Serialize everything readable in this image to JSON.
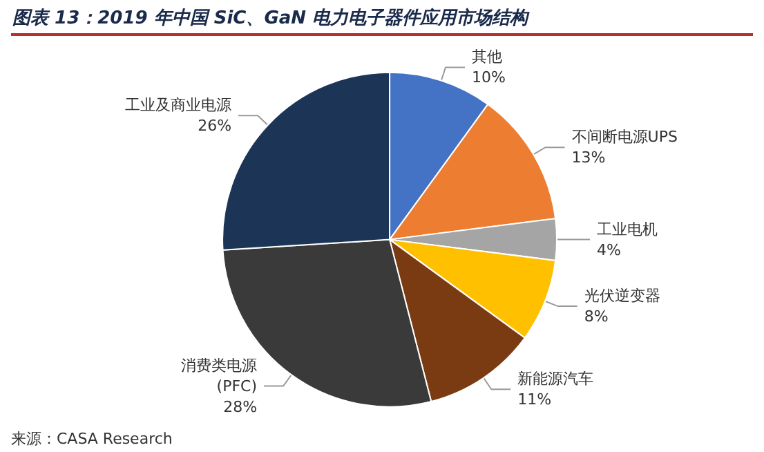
{
  "chart_data": {
    "type": "pie",
    "title": "图表 13：2019 年中国 SiC、GaN 电力电子器件应用市场结构",
    "categories": [
      "其他",
      "不间断电源UPS",
      "工业电机",
      "光伏逆变器",
      "新能源汽车",
      "消费类电源(PFC)",
      "工业及商业电源"
    ],
    "values": [
      10,
      13,
      4,
      8,
      11,
      28,
      26
    ],
    "colors": [
      "#4472c4",
      "#ed7d31",
      "#a5a5a5",
      "#ffc000",
      "#7b3b12",
      "#3a3a3a",
      "#1c3557"
    ],
    "value_labels": [
      "10%",
      "13%",
      "4%",
      "8%",
      "11%",
      "28%",
      "26%"
    ],
    "legend": false,
    "annotations": [
      "来源：CASA Research"
    ]
  }
}
